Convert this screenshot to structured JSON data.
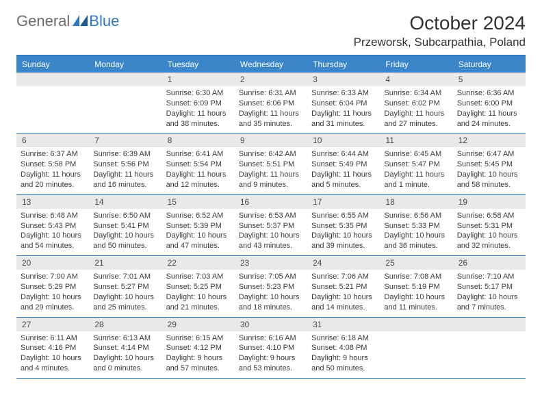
{
  "logo": {
    "general": "General",
    "blue": "Blue"
  },
  "title": "October 2024",
  "location": "Przeworsk, Subcarpathia, Poland",
  "colors": {
    "header_bg": "#3b86c8",
    "border": "#2f78bf",
    "daynum_bg": "#e9e9e9",
    "text": "#3a3a3a"
  },
  "day_headers": [
    "Sunday",
    "Monday",
    "Tuesday",
    "Wednesday",
    "Thursday",
    "Friday",
    "Saturday"
  ],
  "weeks": [
    [
      {
        "blank": true
      },
      {
        "blank": true
      },
      {
        "n": "1",
        "sr": "6:30 AM",
        "ss": "6:09 PM",
        "dl": "11 hours and 38 minutes."
      },
      {
        "n": "2",
        "sr": "6:31 AM",
        "ss": "6:06 PM",
        "dl": "11 hours and 35 minutes."
      },
      {
        "n": "3",
        "sr": "6:33 AM",
        "ss": "6:04 PM",
        "dl": "11 hours and 31 minutes."
      },
      {
        "n": "4",
        "sr": "6:34 AM",
        "ss": "6:02 PM",
        "dl": "11 hours and 27 minutes."
      },
      {
        "n": "5",
        "sr": "6:36 AM",
        "ss": "6:00 PM",
        "dl": "11 hours and 24 minutes."
      }
    ],
    [
      {
        "n": "6",
        "sr": "6:37 AM",
        "ss": "5:58 PM",
        "dl": "11 hours and 20 minutes."
      },
      {
        "n": "7",
        "sr": "6:39 AM",
        "ss": "5:56 PM",
        "dl": "11 hours and 16 minutes."
      },
      {
        "n": "8",
        "sr": "6:41 AM",
        "ss": "5:54 PM",
        "dl": "11 hours and 12 minutes."
      },
      {
        "n": "9",
        "sr": "6:42 AM",
        "ss": "5:51 PM",
        "dl": "11 hours and 9 minutes."
      },
      {
        "n": "10",
        "sr": "6:44 AM",
        "ss": "5:49 PM",
        "dl": "11 hours and 5 minutes."
      },
      {
        "n": "11",
        "sr": "6:45 AM",
        "ss": "5:47 PM",
        "dl": "11 hours and 1 minute."
      },
      {
        "n": "12",
        "sr": "6:47 AM",
        "ss": "5:45 PM",
        "dl": "10 hours and 58 minutes."
      }
    ],
    [
      {
        "n": "13",
        "sr": "6:48 AM",
        "ss": "5:43 PM",
        "dl": "10 hours and 54 minutes."
      },
      {
        "n": "14",
        "sr": "6:50 AM",
        "ss": "5:41 PM",
        "dl": "10 hours and 50 minutes."
      },
      {
        "n": "15",
        "sr": "6:52 AM",
        "ss": "5:39 PM",
        "dl": "10 hours and 47 minutes."
      },
      {
        "n": "16",
        "sr": "6:53 AM",
        "ss": "5:37 PM",
        "dl": "10 hours and 43 minutes."
      },
      {
        "n": "17",
        "sr": "6:55 AM",
        "ss": "5:35 PM",
        "dl": "10 hours and 39 minutes."
      },
      {
        "n": "18",
        "sr": "6:56 AM",
        "ss": "5:33 PM",
        "dl": "10 hours and 36 minutes."
      },
      {
        "n": "19",
        "sr": "6:58 AM",
        "ss": "5:31 PM",
        "dl": "10 hours and 32 minutes."
      }
    ],
    [
      {
        "n": "20",
        "sr": "7:00 AM",
        "ss": "5:29 PM",
        "dl": "10 hours and 29 minutes."
      },
      {
        "n": "21",
        "sr": "7:01 AM",
        "ss": "5:27 PM",
        "dl": "10 hours and 25 minutes."
      },
      {
        "n": "22",
        "sr": "7:03 AM",
        "ss": "5:25 PM",
        "dl": "10 hours and 21 minutes."
      },
      {
        "n": "23",
        "sr": "7:05 AM",
        "ss": "5:23 PM",
        "dl": "10 hours and 18 minutes."
      },
      {
        "n": "24",
        "sr": "7:06 AM",
        "ss": "5:21 PM",
        "dl": "10 hours and 14 minutes."
      },
      {
        "n": "25",
        "sr": "7:08 AM",
        "ss": "5:19 PM",
        "dl": "10 hours and 11 minutes."
      },
      {
        "n": "26",
        "sr": "7:10 AM",
        "ss": "5:17 PM",
        "dl": "10 hours and 7 minutes."
      }
    ],
    [
      {
        "n": "27",
        "sr": "6:11 AM",
        "ss": "4:16 PM",
        "dl": "10 hours and 4 minutes."
      },
      {
        "n": "28",
        "sr": "6:13 AM",
        "ss": "4:14 PM",
        "dl": "10 hours and 0 minutes."
      },
      {
        "n": "29",
        "sr": "6:15 AM",
        "ss": "4:12 PM",
        "dl": "9 hours and 57 minutes."
      },
      {
        "n": "30",
        "sr": "6:16 AM",
        "ss": "4:10 PM",
        "dl": "9 hours and 53 minutes."
      },
      {
        "n": "31",
        "sr": "6:18 AM",
        "ss": "4:08 PM",
        "dl": "9 hours and 50 minutes."
      },
      {
        "blank": true
      },
      {
        "blank": true
      }
    ]
  ],
  "labels": {
    "sunrise": "Sunrise:",
    "sunset": "Sunset:",
    "daylight": "Daylight:"
  }
}
